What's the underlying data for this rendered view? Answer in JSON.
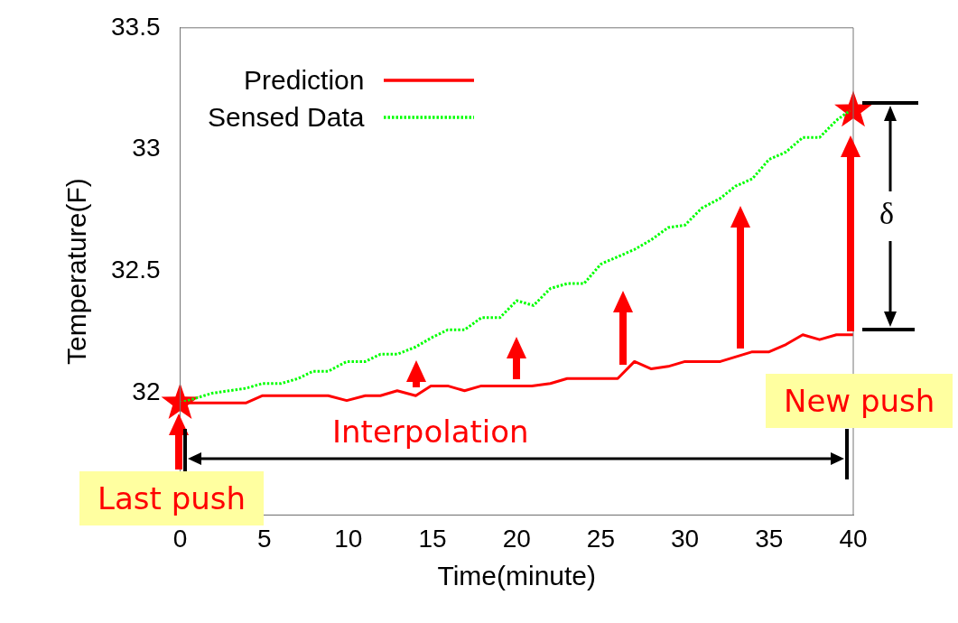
{
  "chart_data": {
    "type": "line",
    "xlabel": "Time(minute)",
    "ylabel": "Temperature(F)",
    "xlim": [
      0,
      40
    ],
    "xticks": [
      0,
      5,
      10,
      15,
      20,
      25,
      30,
      35,
      40
    ],
    "ylim": [
      31.5,
      33.5
    ],
    "yticks": [
      32,
      32.5,
      33,
      33.5
    ],
    "grid": false,
    "legend": "top left",
    "marker": "none",
    "series": [
      {
        "name": "Prediction",
        "color": "#ff0000",
        "line_style": "solid",
        "x": [
          0,
          3.9,
          4.9,
          8.8,
          9.9,
          11,
          11.9,
          12.9,
          14,
          14.9,
          15.9,
          16.9,
          17.9,
          20.9,
          22,
          23,
          26,
          27,
          28,
          29,
          30,
          32.1,
          34,
          35,
          36,
          37,
          38,
          39,
          40
        ],
        "values": [
          31.96,
          31.96,
          31.99,
          31.99,
          31.97,
          31.99,
          31.99,
          32.01,
          31.99,
          32.03,
          32.03,
          32.01,
          32.03,
          32.03,
          32.04,
          32.06,
          32.06,
          32.13,
          32.1,
          32.11,
          32.13,
          32.13,
          32.17,
          32.17,
          32.2,
          32.24,
          32.22,
          32.24,
          32.24
        ]
      },
      {
        "name": "Sensed Data",
        "color": "#00ff00",
        "line_style": "dotted",
        "x": [
          0,
          1.9,
          3.9,
          4.9,
          6,
          7,
          7.9,
          8.8,
          9.9,
          11,
          11.9,
          12.9,
          14,
          15,
          15.9,
          16.9,
          17.9,
          19,
          20,
          21,
          22,
          23,
          24,
          25,
          26,
          27,
          28,
          29,
          30,
          31,
          32.1,
          33,
          34,
          35,
          36,
          37,
          38,
          39,
          39.8
        ],
        "values": [
          31.96,
          32,
          32.02,
          32.04,
          32.04,
          32.06,
          32.09,
          32.09,
          32.13,
          32.13,
          32.16,
          32.16,
          32.19,
          32.23,
          32.26,
          32.26,
          32.31,
          32.31,
          32.38,
          32.36,
          32.43,
          32.45,
          32.45,
          32.53,
          32.56,
          32.59,
          32.63,
          32.68,
          32.69,
          32.76,
          32.8,
          32.85,
          32.88,
          32.96,
          32.99,
          33.05,
          33.05,
          33.12,
          33.16
        ]
      },
      {
        "type": "scatter",
        "marker": "star",
        "color": "#ff0000",
        "x": [
          0,
          40
        ],
        "values": [
          31.96,
          33.16
        ]
      }
    ],
    "annotations": [
      "Interpolation",
      "Last push",
      "New push",
      "δ"
    ]
  }
}
